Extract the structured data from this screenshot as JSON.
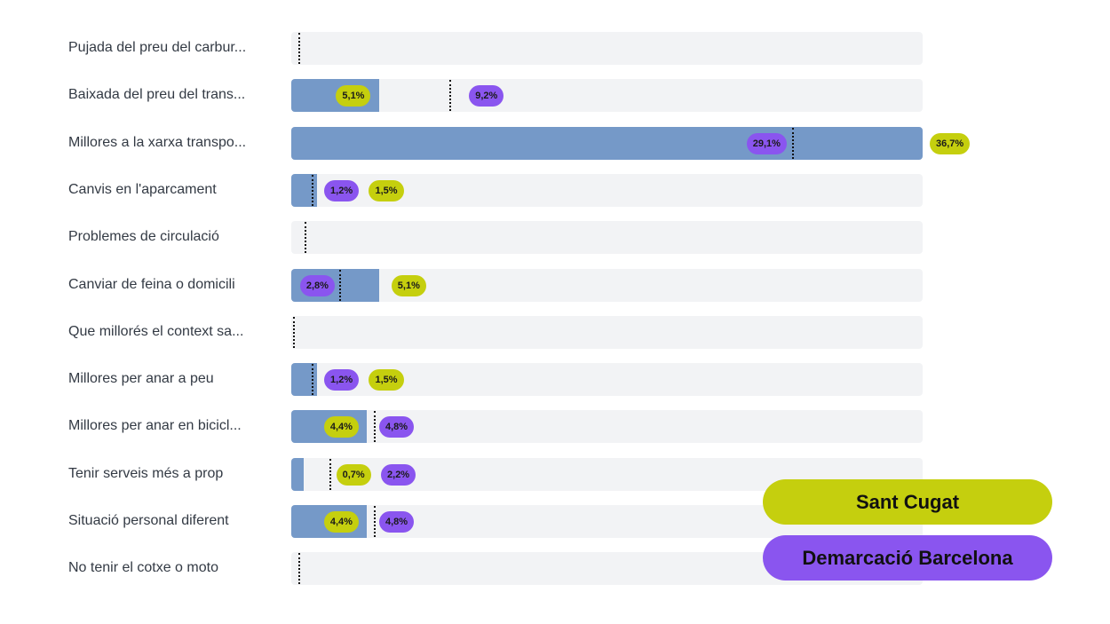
{
  "colors": {
    "track": "#f2f3f5",
    "bar": "#7599c8",
    "sant_cugat": "#c5cf0e",
    "barcelona": "#8a55ef"
  },
  "legend": {
    "sant_cugat": "Sant Cugat",
    "barcelona": "Demarcació Barcelona"
  },
  "chart_data": {
    "type": "bar",
    "orientation": "horizontal",
    "axis_range": [
      0,
      36.7
    ],
    "categories": [
      "Pujada del preu del carbur...",
      "Baixada del preu del trans...",
      "Millores a la xarxa transpo...",
      "Canvis en l'aparcament",
      "Problemes de circulació",
      "Canviar de feina o domicili",
      "Que millorés el context sa...",
      "Millores per anar a peu",
      "Millores per anar en bicicl...",
      "Tenir serveis més a prop",
      "Situació personal diferent",
      "No tenir el cotxe o moto"
    ],
    "series": [
      {
        "name": "Sant Cugat",
        "color": "#c5cf0e",
        "shown_as": "bar",
        "values": [
          null,
          5.1,
          36.7,
          1.5,
          null,
          5.1,
          null,
          1.5,
          4.4,
          0.7,
          4.4,
          null
        ],
        "labels": [
          "",
          "5,1%",
          "36,7%",
          "1,5%",
          "",
          "5,1%",
          "",
          "1,5%",
          "4,4%",
          "0,7%",
          "4,4%",
          ""
        ]
      },
      {
        "name": "Demarcació Barcelona",
        "color": "#8a55ef",
        "shown_as": "dotted-marker",
        "values": [
          0.4,
          9.2,
          29.1,
          1.2,
          0.8,
          2.8,
          0.1,
          1.2,
          4.8,
          2.2,
          4.8,
          0.4
        ],
        "labels": [
          "",
          "9,2%",
          "29,1%",
          "1,2%",
          "",
          "2,8%",
          "",
          "1,2%",
          "4,8%",
          "2,2%",
          "4,8%",
          ""
        ]
      }
    ]
  }
}
